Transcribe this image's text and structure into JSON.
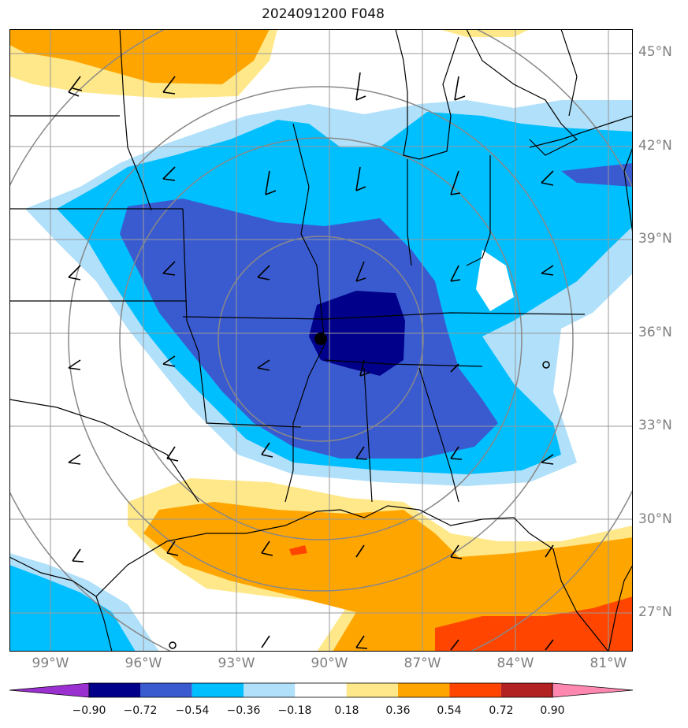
{
  "title": "2024091200 F048",
  "latitude_labels": [
    "45°N",
    "42°N",
    "39°N",
    "36°N",
    "33°N",
    "30°N",
    "27°N"
  ],
  "longitude_labels": [
    "99°W",
    "96°W",
    "93°W",
    "90°W",
    "87°W",
    "84°W",
    "81°W"
  ],
  "colorbar": {
    "tick_labels": [
      "−0.90",
      "−0.72",
      "−0.54",
      "−0.36",
      "−0.18",
      "0.18",
      "0.36",
      "0.54",
      "0.72",
      "0.90"
    ],
    "colors": [
      "#9b30d0",
      "#00008b",
      "#3a5bd0",
      "#00bfff",
      "#b0e0fa",
      "#ffffff",
      "#ffe88a",
      "#ffa500",
      "#ff4500",
      "#b22222",
      "#ff88b0"
    ]
  },
  "map": {
    "region": "Central United States and Gulf of Mexico",
    "storm_center_marker": "black-dot",
    "grid": "on",
    "range_rings": 4
  }
}
